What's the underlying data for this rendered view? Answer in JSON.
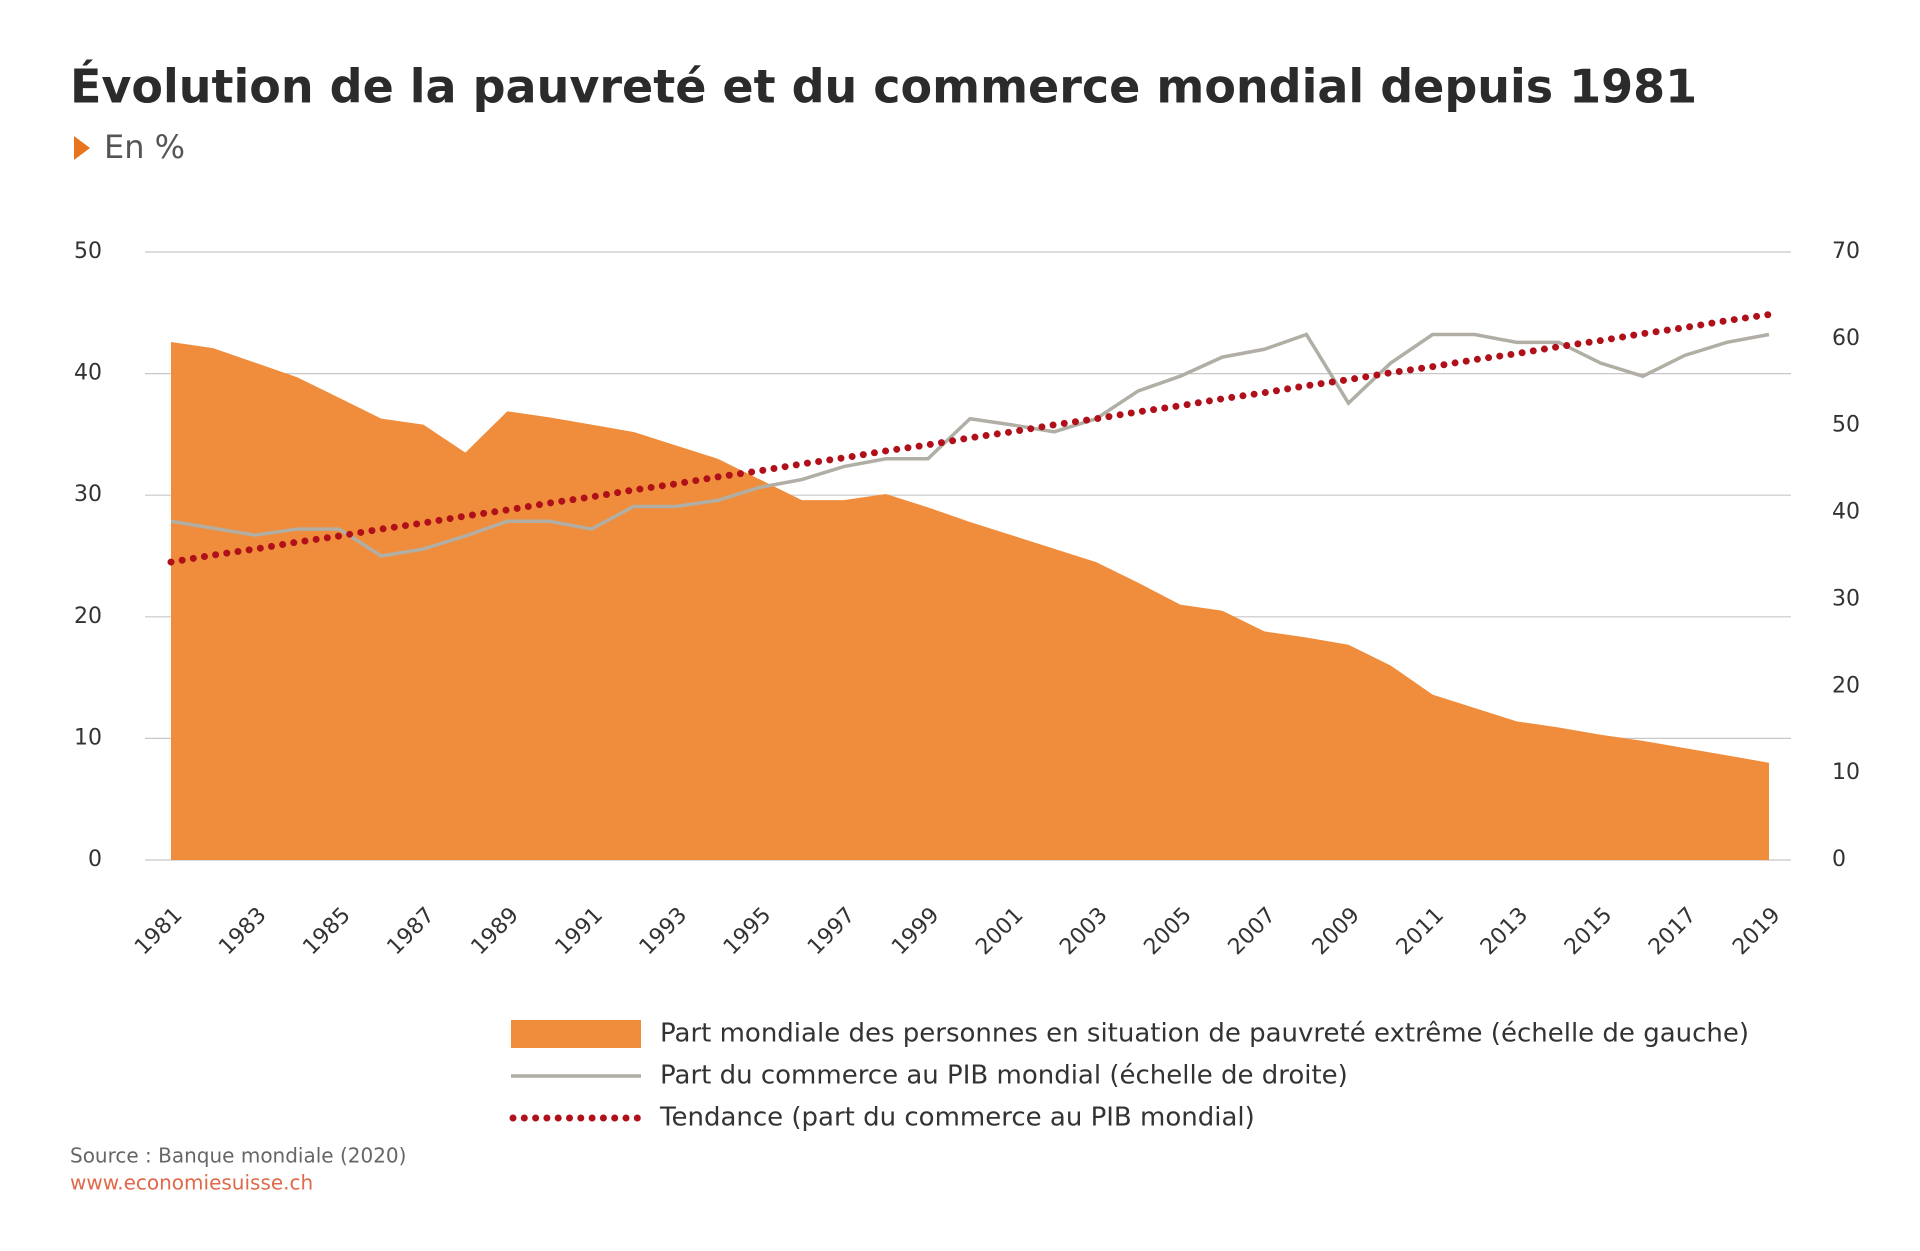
{
  "chart_data": {
    "type": "line",
    "title": "Évolution de la pauvreté et du commerce mondial depuis 1981",
    "subtitle": "En %",
    "x": [
      1981,
      1982,
      1983,
      1984,
      1985,
      1986,
      1987,
      1988,
      1989,
      1990,
      1991,
      1992,
      1993,
      1994,
      1995,
      1996,
      1997,
      1998,
      1999,
      2000,
      2001,
      2002,
      2003,
      2004,
      2005,
      2006,
      2007,
      2008,
      2009,
      2010,
      2011,
      2012,
      2013,
      2014,
      2015,
      2016,
      2017,
      2018,
      2019
    ],
    "xlim": [
      1981,
      2019
    ],
    "xticks": [
      1981,
      1983,
      1985,
      1987,
      1989,
      1991,
      1993,
      1995,
      1997,
      1999,
      2001,
      2003,
      2005,
      2007,
      2009,
      2011,
      2013,
      2015,
      2017,
      2019
    ],
    "ylim": [
      0,
      50
    ],
    "yticks": [
      0,
      10,
      20,
      30,
      40,
      50
    ],
    "y2lim": [
      0,
      70
    ],
    "y2ticks": [
      0,
      10,
      20,
      30,
      40,
      50,
      60,
      70
    ],
    "grid": true,
    "series": [
      {
        "name": "Part mondiale des personnes en situation de pauvreté extrême (échelle de gauche)",
        "color": "#f08d3c",
        "style": "area",
        "values": [
          42.6,
          42.1,
          40.9,
          39.7,
          38.0,
          36.3,
          35.8,
          33.5,
          36.9,
          36.4,
          35.8,
          35.2,
          34.1,
          33.0,
          31.3,
          29.6,
          29.6,
          30.1,
          29.0,
          27.8,
          26.7,
          25.6,
          24.5,
          22.8,
          21.0,
          20.5,
          18.8,
          18.3,
          17.7,
          16.0,
          13.6,
          12.5,
          11.4,
          10.9,
          10.3,
          9.8,
          9.2,
          8.6,
          8.0
        ]
      },
      {
        "name": "Part du commerce au PIB mondial (échelle de droite)",
        "color": "#b0aea5",
        "style": "line",
        "axis": "y2",
        "values": [
          39.0,
          38.2,
          37.4,
          38.1,
          38.1,
          35.0,
          35.8,
          37.3,
          39.0,
          39.0,
          38.1,
          40.7,
          40.7,
          41.4,
          42.9,
          43.8,
          45.3,
          46.2,
          46.2,
          50.8,
          50.1,
          49.3,
          50.8,
          54.0,
          55.7,
          57.9,
          58.8,
          60.5,
          52.6,
          57.2,
          60.5,
          60.5,
          59.6,
          59.6,
          57.2,
          55.7,
          58.1,
          59.6,
          60.5
        ]
      },
      {
        "name": "Tendance (part du commerce au PIB mondial)",
        "color": "#b0101a",
        "style": "dotted",
        "axis": "y2",
        "values": [
          34.3,
          35.1,
          35.8,
          36.6,
          37.3,
          38.1,
          38.8,
          39.6,
          40.3,
          41.1,
          41.8,
          42.6,
          43.3,
          44.1,
          44.8,
          45.6,
          46.3,
          47.1,
          47.8,
          48.6,
          49.3,
          50.1,
          50.8,
          51.6,
          52.3,
          53.1,
          53.8,
          54.6,
          55.3,
          56.1,
          56.8,
          57.6,
          58.3,
          59.1,
          59.8,
          60.6,
          61.3,
          62.1,
          62.8
        ]
      }
    ],
    "source": "Source : Banque mondiale (2020)",
    "website": "www.economiesuisse.ch"
  }
}
